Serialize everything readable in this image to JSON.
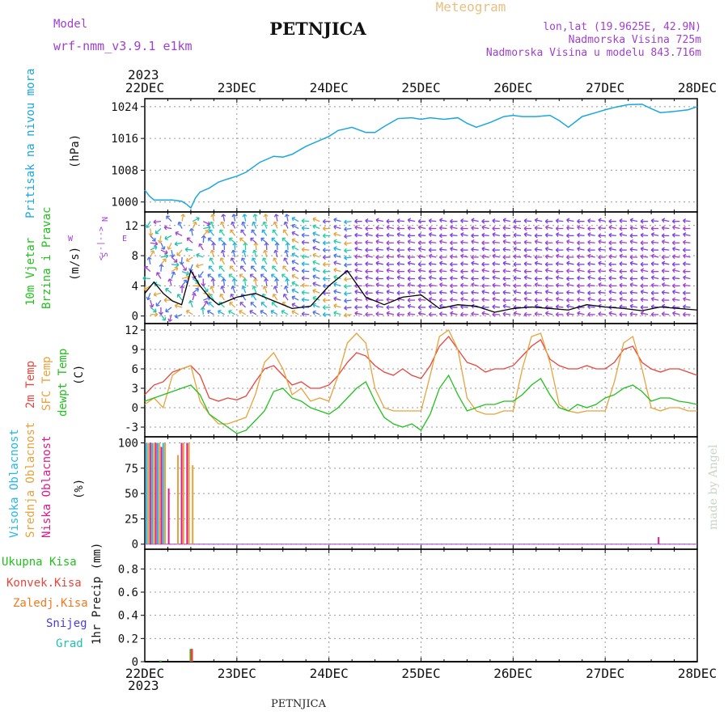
{
  "header": {
    "model_label": "Model",
    "model_name": "wrf-nmm_v3.9.1  e1km",
    "station": "PETNJICA",
    "meteogram": "Meteogram",
    "coords": "lon,lat (19.9625E, 42.9N)",
    "altitude": "Nadmorska Visina 725m",
    "model_altitude": "Nadmorska Visina u modelu 843.716m",
    "credit": "made by Angel",
    "footer_station": "PETNJICA"
  },
  "colors": {
    "pressure": "#1aa7e0",
    "temp2m": "#e8453c",
    "sfc_temp": "#e8a23c",
    "dewpt": "#22c11e",
    "purple": "#a040d0",
    "high_cloud": "#27b7e4",
    "mid_cloud": "#e8a23c",
    "low_cloud": "#e01a8a",
    "total_precip": "#22c11e",
    "conv_precip": "#e8453c",
    "frozen_precip": "#f07a20",
    "snow": "#4a3ce0",
    "hail": "#20c0b0"
  },
  "chart_data": [
    {
      "panel": "pressure",
      "type": "line",
      "year": "2023",
      "x_ticks": [
        "22DEC",
        "23DEC",
        "24DEC",
        "25DEC",
        "26DEC",
        "27DEC",
        "28DEC"
      ],
      "ylabel_outer": "Pritisak na nivou mora",
      "ylabel_unit": "(hPa)",
      "y_ticks": [
        "1000",
        "1008",
        "1016",
        "1024"
      ],
      "ylim": [
        997.5,
        1026
      ],
      "x_range_days": [
        0,
        6
      ],
      "series": [
        {
          "x": [
            0,
            0.05,
            0.1,
            0.2,
            0.3,
            0.4,
            0.45,
            0.5,
            0.55,
            0.6,
            0.7,
            0.8,
            0.9,
            1.0,
            1.1,
            1.25,
            1.4,
            1.5,
            1.6,
            1.75,
            1.9,
            2.0,
            2.1,
            2.25,
            2.4,
            2.5,
            2.6,
            2.75,
            2.9,
            3.0,
            3.1,
            3.25,
            3.4,
            3.5,
            3.6,
            3.75,
            3.9,
            4.0,
            4.1,
            4.25,
            4.4,
            4.5,
            4.6,
            4.75,
            4.9,
            5.0,
            5.1,
            5.25,
            5.4,
            5.5,
            5.6,
            5.75,
            5.9,
            6.0
          ],
          "y": [
            1003,
            1001.5,
            1000.5,
            1000.5,
            1000.5,
            1000.2,
            999.5,
            998.5,
            1001,
            1002.5,
            1003.5,
            1005,
            1005.8,
            1006.5,
            1007.5,
            1010,
            1011.5,
            1011.3,
            1012,
            1014,
            1015.5,
            1016.5,
            1018,
            1018.8,
            1017.5,
            1017.5,
            1019,
            1021,
            1021.2,
            1020.8,
            1021.2,
            1020.8,
            1021.2,
            1019.8,
            1018.8,
            1020,
            1021.5,
            1021.8,
            1021.5,
            1021.5,
            1021.8,
            1020.5,
            1018.8,
            1021.5,
            1022.5,
            1023.2,
            1023.8,
            1024.5,
            1024.6,
            1023.5,
            1022.5,
            1022.8,
            1023.2,
            1024
          ]
        }
      ]
    },
    {
      "panel": "wind",
      "type": "line",
      "ylabel_outer": "10m Vjetar Brzina i Pravac",
      "ylabel_unit": "(m/s)",
      "compass": {
        "n": "N",
        "w": "W",
        "e": "E",
        "s": "S",
        "arrows": "<--|-->"
      },
      "y_ticks": [
        "0",
        "4",
        "8",
        "12"
      ],
      "ylim": [
        -1,
        13.8
      ],
      "series": [
        {
          "name": "speed",
          "x": [
            0,
            0.1,
            0.2,
            0.3,
            0.4,
            0.5,
            0.6,
            0.7,
            0.8,
            0.9,
            1.0,
            1.2,
            1.4,
            1.6,
            1.8,
            2.0,
            2.2,
            2.4,
            2.6,
            2.8,
            3.0,
            3.2,
            3.4,
            3.6,
            3.8,
            4.0,
            4.2,
            4.4,
            4.6,
            4.8,
            5.0,
            5.2,
            5.4,
            5.6,
            5.8,
            6.0
          ],
          "y": [
            3,
            4.5,
            3,
            2,
            1.5,
            6,
            4,
            2.5,
            1.5,
            2,
            2.5,
            3,
            2,
            1,
            1.3,
            4,
            6,
            2.5,
            1.5,
            2.5,
            2.8,
            1,
            1.5,
            1.3,
            0.5,
            1,
            1.2,
            1,
            0.8,
            1.5,
            1.2,
            1,
            0.7,
            1.2,
            1,
            0.8
          ]
        }
      ],
      "barbs_note": "speed arrows"
    },
    {
      "panel": "temperature",
      "type": "line",
      "ylabel_outer": [
        "2m Temp",
        "SFC Temp",
        "dewpt Temp"
      ],
      "ylabel_unit": "(C)",
      "y_ticks": [
        "-3",
        "0",
        "3",
        "6",
        "9",
        "12"
      ],
      "ylim": [
        -4.5,
        13
      ],
      "series": [
        {
          "name": "2m Temp",
          "x": [
            0,
            0.1,
            0.2,
            0.3,
            0.4,
            0.5,
            0.6,
            0.7,
            0.8,
            0.9,
            1.0,
            1.1,
            1.2,
            1.3,
            1.4,
            1.5,
            1.6,
            1.7,
            1.8,
            1.9,
            2.0,
            2.1,
            2.2,
            2.3,
            2.4,
            2.5,
            2.6,
            2.7,
            2.8,
            2.9,
            3.0,
            3.1,
            3.2,
            3.3,
            3.4,
            3.5,
            3.6,
            3.7,
            3.8,
            3.9,
            4.0,
            4.1,
            4.2,
            4.3,
            4.4,
            4.5,
            4.6,
            4.7,
            4.8,
            4.9,
            5.0,
            5.1,
            5.2,
            5.3,
            5.4,
            5.5,
            5.6,
            5.7,
            5.8,
            5.9,
            6.0
          ],
          "y": [
            2,
            3.5,
            4,
            5.5,
            6,
            6.5,
            5,
            1.5,
            1,
            1.5,
            1.2,
            1.8,
            4,
            6,
            6.5,
            5,
            3.5,
            4,
            3,
            3,
            3.5,
            5,
            7,
            8.5,
            8,
            6.5,
            5.5,
            5,
            6,
            5,
            4.5,
            6.5,
            9.5,
            11,
            9,
            7,
            6.5,
            5.5,
            6,
            6,
            6.5,
            8,
            9.5,
            10.5,
            7.5,
            6.5,
            6,
            6,
            6.5,
            6,
            6,
            7,
            9,
            9.5,
            7,
            6,
            5.5,
            6,
            6,
            5.5,
            5
          ]
        },
        {
          "name": "SFC Temp",
          "x": [
            0,
            0.1,
            0.2,
            0.3,
            0.4,
            0.5,
            0.6,
            0.7,
            0.8,
            0.9,
            1.0,
            1.1,
            1.2,
            1.3,
            1.4,
            1.5,
            1.6,
            1.7,
            1.8,
            1.9,
            2.0,
            2.1,
            2.2,
            2.3,
            2.4,
            2.5,
            2.6,
            2.7,
            2.8,
            2.9,
            3.0,
            3.1,
            3.2,
            3.3,
            3.4,
            3.5,
            3.6,
            3.7,
            3.8,
            3.9,
            4.0,
            4.1,
            4.2,
            4.3,
            4.4,
            4.5,
            4.6,
            4.7,
            4.8,
            4.9,
            5.0,
            5.1,
            5.2,
            5.3,
            5.4,
            5.5,
            5.6,
            5.7,
            5.8,
            5.9,
            6.0
          ],
          "y": [
            0.5,
            1.5,
            0,
            5,
            6,
            6.5,
            1,
            -1,
            -2.5,
            -2.5,
            -2,
            -1.5,
            2,
            7,
            8.5,
            6,
            2,
            3,
            1,
            1.5,
            1,
            5,
            10,
            11.5,
            10,
            3,
            0,
            -0.5,
            -0.5,
            -0.5,
            -0.5,
            5,
            11,
            12,
            9,
            1.5,
            -0.5,
            -1,
            -1,
            -0.5,
            -0.5,
            6,
            11,
            11.5,
            7,
            0.5,
            -0.5,
            -0.8,
            -0.5,
            -0.5,
            -0.5,
            4,
            10,
            11,
            6,
            0,
            -0.5,
            0,
            0,
            -0.5,
            -0.5
          ]
        },
        {
          "name": "dewpt Temp",
          "x": [
            0,
            0.1,
            0.2,
            0.3,
            0.4,
            0.5,
            0.6,
            0.7,
            0.8,
            0.9,
            1.0,
            1.1,
            1.2,
            1.3,
            1.4,
            1.5,
            1.6,
            1.7,
            1.8,
            1.9,
            2.0,
            2.1,
            2.2,
            2.3,
            2.4,
            2.5,
            2.6,
            2.7,
            2.8,
            2.9,
            3.0,
            3.1,
            3.2,
            3.3,
            3.4,
            3.5,
            3.6,
            3.7,
            3.8,
            3.9,
            4.0,
            4.1,
            4.2,
            4.3,
            4.4,
            4.5,
            4.6,
            4.7,
            4.8,
            4.9,
            5.0,
            5.1,
            5.2,
            5.3,
            5.4,
            5.5,
            5.6,
            5.7,
            5.8,
            5.9,
            6.0
          ],
          "y": [
            1,
            1.5,
            2,
            2.5,
            3,
            3.5,
            2,
            -1,
            -2,
            -3,
            -4,
            -3.5,
            -2,
            -0.5,
            2.5,
            3,
            1.5,
            1,
            0,
            -0.5,
            -1,
            0,
            1.5,
            3,
            4,
            1,
            -1.5,
            -2.5,
            -3,
            -2.5,
            -3.5,
            -1,
            3,
            5,
            2,
            -0.5,
            0,
            0.5,
            0.5,
            1,
            1,
            2,
            3.5,
            4.5,
            2,
            0,
            -0.5,
            0.5,
            0,
            0.5,
            1.5,
            2,
            3,
            3.5,
            2.5,
            1,
            1.5,
            1.5,
            1,
            0.8,
            0.5
          ]
        }
      ]
    },
    {
      "panel": "cloud",
      "type": "bar",
      "ylabel_outer": [
        "Visoka Oblacnost",
        "Srednja Oblacnost",
        "Niska Oblacnost"
      ],
      "ylabel_unit": "(%)",
      "y_ticks": [
        "0",
        "25",
        "50",
        "75",
        "100"
      ],
      "ylim": [
        -5,
        106
      ],
      "series": [
        {
          "name": "Visoka Oblacnost",
          "x": [
            0.02,
            0.08,
            0.14,
            0.2
          ],
          "values": [
            100,
            100,
            100,
            100
          ]
        },
        {
          "name": "Srednja Oblacnost",
          "x": [
            0.04,
            0.1,
            0.16,
            0.22,
            0.36,
            0.42,
            0.48,
            0.52
          ],
          "values": [
            100,
            100,
            100,
            100,
            88,
            100,
            100,
            78
          ]
        },
        {
          "name": "Niska Oblacnost",
          "x": [
            0.06,
            0.12,
            0.18,
            0.26,
            0.4,
            0.46,
            5.58
          ],
          "values": [
            100,
            100,
            96,
            55,
            100,
            100,
            7
          ]
        }
      ]
    },
    {
      "panel": "precip",
      "type": "bar",
      "ylabel_outer": [
        "Ukupna Kisa",
        "Konvek.Kisa",
        "Zaledj.Kisa",
        "Snijeg",
        "Grad"
      ],
      "ylabel_unit": "1hr Precip (mm)",
      "y_ticks": [
        "0",
        "0.2",
        "0.4",
        "0.6",
        "0.8"
      ],
      "ylim": [
        0,
        0.97
      ],
      "series": [
        {
          "name": "Ukupna Kisa",
          "x": [
            0.17,
            0.5
          ],
          "values": [
            0.01,
            0.11
          ]
        },
        {
          "name": "Konvek.Kisa",
          "x": [
            0.51
          ],
          "values": [
            0.11
          ]
        }
      ]
    }
  ]
}
